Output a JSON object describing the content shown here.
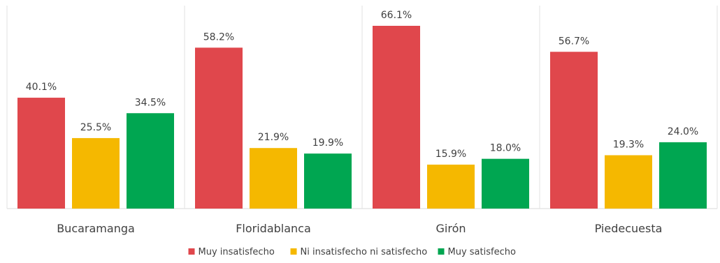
{
  "chart_data": {
    "type": "bar",
    "title": "",
    "xlabel": "",
    "ylabel": "",
    "ylim": [
      0,
      70
    ],
    "grid": false,
    "legend_position": "bottom",
    "categories": [
      "Bucaramanga",
      "Floridablanca",
      "Girón",
      "Piedecuesta"
    ],
    "series": [
      {
        "name": "Muy insatisfecho",
        "color": "#e0474c",
        "values": [
          40.1,
          58.2,
          66.1,
          56.7
        ],
        "labels": [
          "40.1%",
          "58.2%",
          "66.1%",
          "56.7%"
        ]
      },
      {
        "name": "Ni insatisfecho ni satisfecho",
        "color": "#f5b800",
        "values": [
          25.5,
          21.9,
          15.9,
          19.3
        ],
        "labels": [
          "25.5%",
          "21.9%",
          "15.9%",
          "19.3%"
        ]
      },
      {
        "name": "Muy satisfecho",
        "color": "#00a651",
        "values": [
          34.5,
          19.9,
          18.0,
          24.0
        ],
        "labels": [
          "34.5%",
          "19.9%",
          "18.0%",
          "24.0%"
        ]
      }
    ]
  }
}
